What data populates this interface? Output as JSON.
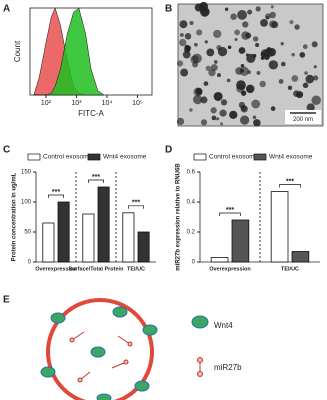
{
  "figure": {
    "panel_labels": [
      "A",
      "B",
      "C",
      "D",
      "E"
    ],
    "scale_bar": "200 nm",
    "diagram_legend": [
      "Wnt4",
      "miR27b"
    ]
  },
  "chart_data": [
    {
      "type": "histogram",
      "x_label": "FITC-A",
      "y_label": "Count",
      "log_x": true,
      "xlim": [
        30,
        300000
      ],
      "xticks": [
        {
          "value": 100,
          "label": "10²"
        },
        {
          "value": 1000,
          "label": "10³"
        },
        {
          "value": 10000,
          "label": "10⁴"
        },
        {
          "value": 100000,
          "label": "10⁵"
        }
      ],
      "ylim": [
        0,
        100
      ],
      "x": [
        40,
        60,
        100,
        150,
        200,
        300,
        500,
        800,
        1200,
        2000,
        3000,
        5000,
        8000
      ],
      "series": [
        {
          "color": "#e8504f",
          "values": [
            0,
            20,
            60,
            90,
            100,
            80,
            40,
            10,
            2,
            0,
            0,
            0,
            0
          ]
        },
        {
          "color": "#1fbf1f",
          "values": [
            0,
            0,
            0,
            2,
            10,
            30,
            70,
            95,
            100,
            70,
            30,
            5,
            0
          ]
        }
      ]
    },
    {
      "type": "bar",
      "y_label": "Protein concentration in ug/mL",
      "categories": [
        "Overexpression",
        "Surface/Total Protein",
        "TEI/UC"
      ],
      "series": [
        {
          "name": "Control exosome",
          "color": "#ffffff",
          "values": [
            65,
            80,
            82
          ]
        },
        {
          "name": "Wnt4 exosome",
          "color": "#333333",
          "values": [
            100,
            125,
            50
          ]
        }
      ],
      "ylim": [
        0,
        150
      ],
      "yticks": [
        0,
        50,
        100,
        150
      ],
      "annotations": [
        "***",
        "***",
        "***"
      ]
    },
    {
      "type": "bar",
      "y_label": "miR27b expression relative to RNU6B",
      "categories": [
        "Overexpression",
        "TEI/UC"
      ],
      "series": [
        {
          "name": "Control exosome",
          "color": "#ffffff",
          "values": [
            0.03,
            0.47
          ]
        },
        {
          "name": "Wnt4 exosome",
          "color": "#555555",
          "values": [
            0.28,
            0.07
          ]
        }
      ],
      "ylim": [
        0,
        0.6
      ],
      "yticks": [
        0,
        0.2,
        0.4,
        0.6
      ],
      "annotations": [
        "***",
        "***"
      ]
    }
  ]
}
